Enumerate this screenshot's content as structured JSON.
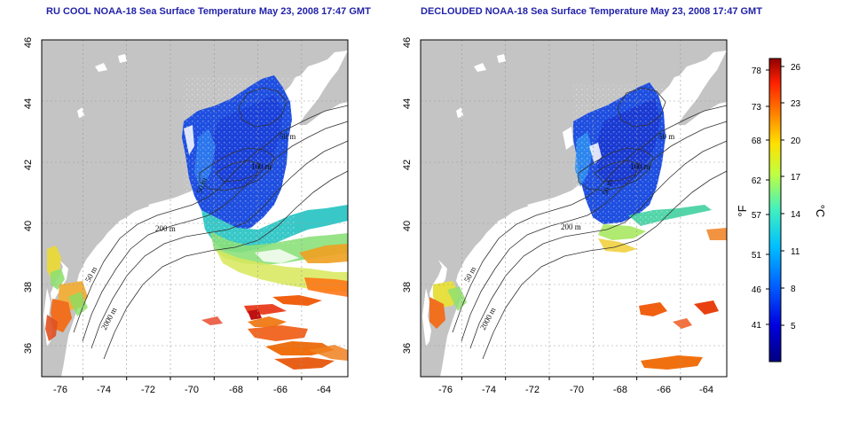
{
  "maps": [
    {
      "title": "RU COOL NOAA-18 Sea Surface Temperature May 23, 2008 17:47 GMT"
    },
    {
      "title": "DECLOUDED NOAA-18 Sea Surface Temperature May 23, 2008 17:47 GMT"
    }
  ],
  "axes": {
    "x_ticks": [
      "-76",
      "-74",
      "-72",
      "-70",
      "-68",
      "-66",
      "-64"
    ],
    "y_ticks": [
      "46",
      "44",
      "42",
      "40",
      "38",
      "36"
    ]
  },
  "contour_labels": [
    "50 m",
    "100 m",
    "200 m",
    "50 m",
    "2000 m",
    "50 m"
  ],
  "colorbar": {
    "fahrenheit_ticks": [
      "78",
      "73",
      "68",
      "62",
      "57",
      "51",
      "46",
      "41"
    ],
    "celsius_ticks": [
      "26",
      "23",
      "20",
      "17",
      "14",
      "11",
      "8",
      "5"
    ],
    "fahrenheit_unit": "°F",
    "celsius_unit": "°C"
  },
  "colors": {
    "land": "#c4c4c4",
    "title": "#2222aa",
    "cold": "#1030d0",
    "warm": "#e04010"
  }
}
